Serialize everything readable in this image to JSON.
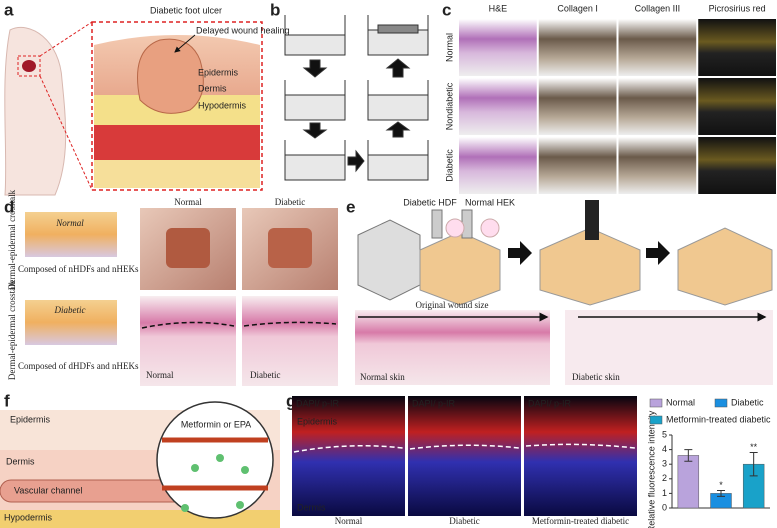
{
  "panels": {
    "a": {
      "label": "a",
      "title": "Diabetic foot ulcer",
      "callout": "Delayed wound healing",
      "layers": [
        "Epidermis",
        "Dermis",
        "Hypodermis"
      ]
    },
    "b": {
      "label": "b"
    },
    "c": {
      "label": "c",
      "columns": [
        "H&E",
        "Collagen I",
        "Collagen III",
        "Picrosirius red"
      ],
      "rows": [
        "Normal",
        "Nondiabetic",
        "Diabetic"
      ]
    },
    "d": {
      "label": "d",
      "models": [
        {
          "name": "Normal",
          "axis": "Dermal-epidermal crosstalk",
          "caption": "Composed of nHDFs and nHEKs"
        },
        {
          "name": "Diabetic",
          "axis": "Dermal-epidermal crosstalk",
          "caption": "Composed of dHDFs and nHEKs"
        }
      ],
      "photo_labels": [
        "Normal",
        "Diabetic"
      ],
      "histology_labels": [
        "Normal",
        "Diabetic"
      ]
    },
    "e": {
      "label": "e",
      "inks": [
        "Diabetic HDF",
        "Normal HEK"
      ],
      "wound": "Original wound size",
      "histology_labels": [
        "Normal skin",
        "Diabetic skin"
      ]
    },
    "f": {
      "label": "f",
      "layers": [
        "Epidermis",
        "Dermis",
        "Hypodermis"
      ],
      "channel": "Vascular channel",
      "drug": "Metformin or EPA"
    },
    "g": {
      "label": "g",
      "stain": {
        "dapi": "DAPI",
        "pir": "/ p-IR"
      },
      "layers": [
        "Epidermis",
        "Dermis"
      ],
      "image_labels": [
        "Normal",
        "Diabetic",
        "Metformin-treated diabetic"
      ],
      "chart": {
        "type": "bar",
        "ylabel": "Relative fluorescence intensity",
        "categories": [
          "Normal",
          "Diabetic",
          "Metformin-treated diabetic"
        ],
        "values": [
          3.6,
          1.0,
          3.0
        ],
        "errors": [
          0.4,
          0.2,
          0.8
        ],
        "colors": [
          "#b9a3dc",
          "#1a8fe0",
          "#19a2c9"
        ],
        "significance": [
          null,
          "*",
          "**"
        ],
        "ylim": [
          0,
          5
        ],
        "yticks": [
          0,
          1,
          2,
          3,
          4,
          5
        ]
      }
    }
  }
}
